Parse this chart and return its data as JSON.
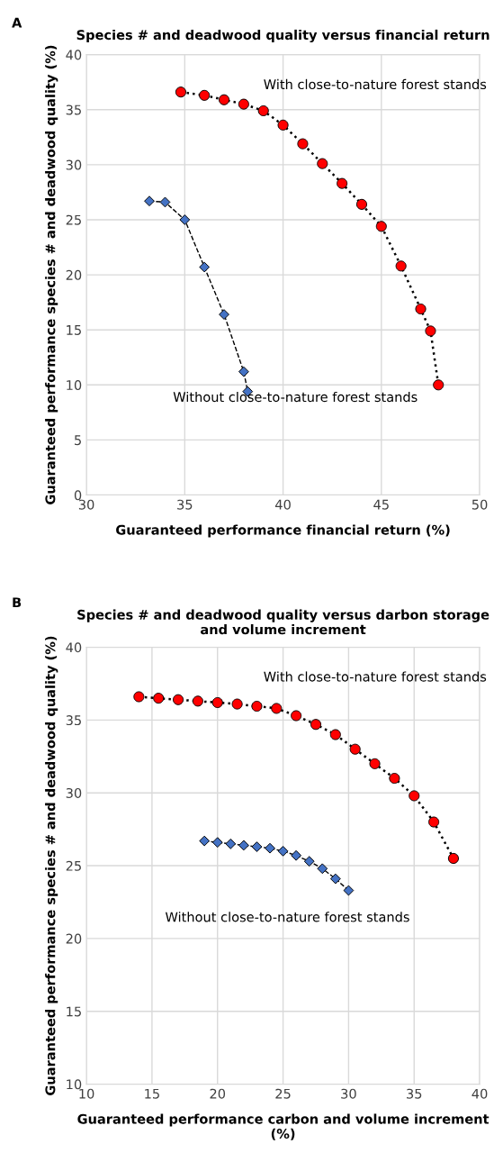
{
  "chart_data": [
    {
      "type": "line",
      "title": "Species # and deadwood quality versus financial return",
      "xlabel": "Guaranteed performance financial return (%)",
      "ylabel": "Guaranteed performance species # and deadwood quality (%)",
      "annotations": [
        "A",
        "With close-to-nature forest stands",
        "Without close-to-nature forest stands"
      ],
      "xlim": [
        30,
        50
      ],
      "xticks": [
        30,
        35,
        40,
        45,
        50
      ],
      "ylim": [
        0,
        40
      ],
      "yticks": [
        0,
        5,
        10,
        15,
        20,
        25,
        30,
        35,
        40
      ],
      "grid": true,
      "legend": false,
      "series": [
        {
          "color": "#ff0000",
          "marker": "circle",
          "line_style": "dotted",
          "x": [
            34.8,
            36,
            37,
            38,
            39,
            40,
            41,
            42,
            43,
            44,
            45,
            46,
            47,
            47.5,
            47.9
          ],
          "values": [
            36.6,
            36.3,
            35.9,
            35.5,
            34.9,
            33.6,
            31.9,
            30.1,
            28.3,
            26.4,
            24.4,
            20.8,
            16.9,
            14.9,
            10.0
          ]
        },
        {
          "color": "#4472c4",
          "marker": "diamond",
          "line_style": "dashed",
          "x": [
            33.2,
            34,
            35,
            36,
            37,
            38,
            38.2
          ],
          "values": [
            26.7,
            26.6,
            25.0,
            20.7,
            16.4,
            11.2,
            9.4
          ]
        }
      ]
    },
    {
      "type": "line",
      "title": "Species # and deadwood quality versus darbon storage and volume increment",
      "xlabel": "Guaranteed performance carbon and volume increment (%)",
      "ylabel": "Guaranteed performance species # and deadwood quality (%)",
      "annotations": [
        "B",
        "With close-to-nature forest stands",
        "Without close-to-nature forest stands"
      ],
      "xlim": [
        10,
        40
      ],
      "xticks": [
        10,
        15,
        20,
        25,
        30,
        35,
        40
      ],
      "ylim": [
        10,
        40
      ],
      "yticks": [
        10,
        15,
        20,
        25,
        30,
        35,
        40
      ],
      "grid": true,
      "legend": false,
      "series": [
        {
          "color": "#ff0000",
          "marker": "circle",
          "line_style": "dotted",
          "x": [
            14,
            15.5,
            17,
            18.5,
            20,
            21.5,
            23,
            24.5,
            26,
            27.5,
            29,
            30.5,
            32,
            33.5,
            35,
            36.5,
            38
          ],
          "values": [
            36.6,
            36.5,
            36.4,
            36.3,
            36.2,
            36.1,
            35.95,
            35.8,
            35.3,
            34.7,
            34.0,
            33.0,
            32.0,
            31.0,
            29.8,
            28.0,
            25.5
          ]
        },
        {
          "color": "#4472c4",
          "marker": "diamond",
          "line_style": "dashed",
          "x": [
            19,
            20,
            21,
            22,
            23,
            24,
            25,
            26,
            27,
            28,
            29,
            30
          ],
          "values": [
            26.7,
            26.6,
            26.5,
            26.4,
            26.3,
            26.2,
            26.0,
            25.7,
            25.3,
            24.8,
            24.1,
            23.3
          ]
        }
      ]
    }
  ]
}
